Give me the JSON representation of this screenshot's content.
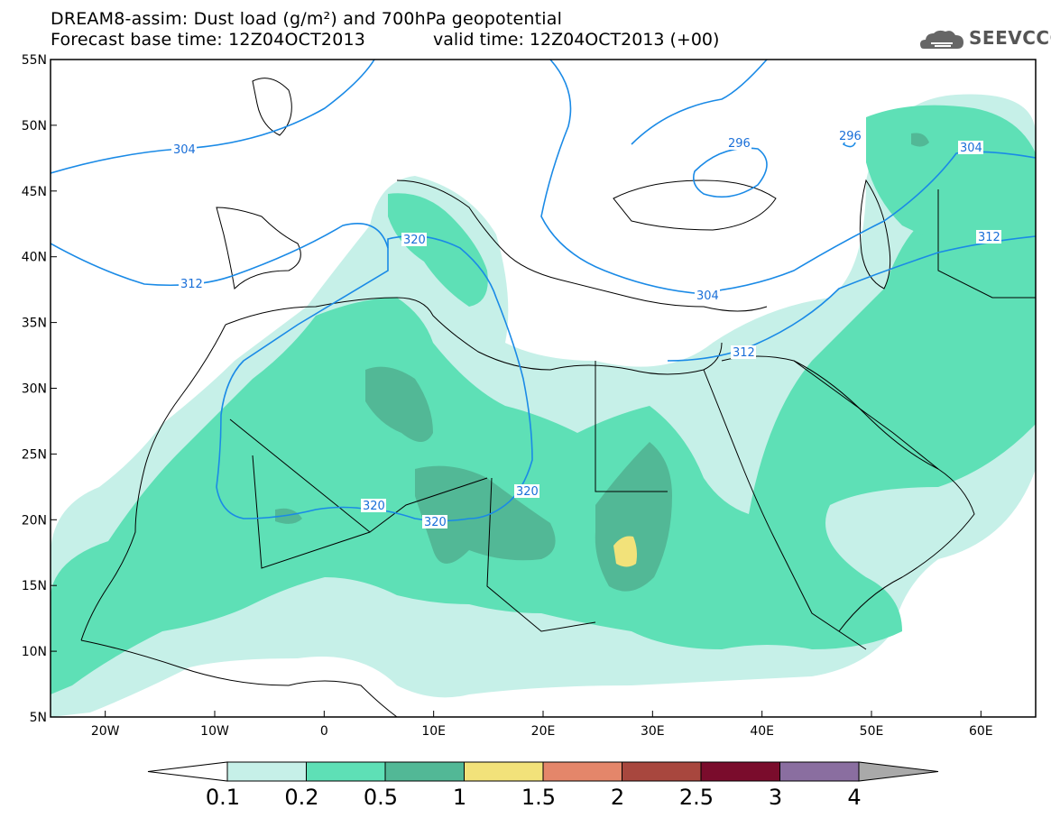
{
  "title": {
    "line1": "DREAM8-assim: Dust load (g/m²) and 700hPa geopotential",
    "line2": "Forecast base time: 12Z04OCT2013",
    "valid_time": "valid time: 12Z04OCT2013 (+00)"
  },
  "logo": {
    "text": "SEEVCCC",
    "icon": "cloud-icon"
  },
  "axes": {
    "lon_range": [
      -25,
      65
    ],
    "lat_range": [
      5,
      55
    ],
    "lat_ticks": [
      "55N",
      "50N",
      "45N",
      "40N",
      "35N",
      "30N",
      "25N",
      "20N",
      "15N",
      "10N",
      "5N"
    ],
    "lat_values": [
      55,
      50,
      45,
      40,
      35,
      30,
      25,
      20,
      15,
      10,
      5
    ],
    "lon_ticks": [
      "20W",
      "10W",
      "0",
      "10E",
      "20E",
      "30E",
      "40E",
      "50E",
      "60E"
    ],
    "lon_values": [
      -20,
      -10,
      0,
      10,
      20,
      30,
      40,
      50,
      60
    ]
  },
  "colorbar": {
    "labels": [
      "0.1",
      "0.2",
      "0.5",
      "1",
      "1.5",
      "2",
      "2.5",
      "3",
      "4"
    ],
    "colors": [
      "#c6f0e8",
      "#5ee0b6",
      "#52b896",
      "#f2e27a",
      "#e4866a",
      "#a8473e",
      "#7a0c2c",
      "#8a6ea0"
    ],
    "under_color": "#ffffff",
    "over_color": "#a9a9a9"
  },
  "contours": {
    "color": "#1a8ae6",
    "labels": [
      "304",
      "296",
      "296",
      "304",
      "312",
      "312",
      "320",
      "320",
      "320",
      "320",
      "304",
      "312"
    ]
  }
}
